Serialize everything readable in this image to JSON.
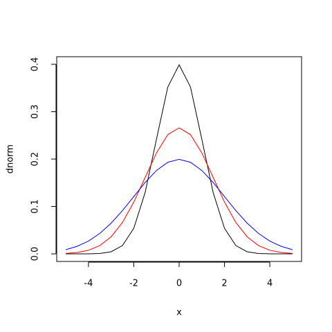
{
  "chart_data": {
    "type": "line",
    "xlabel": "x",
    "ylabel": "dnorm",
    "x": [
      -5,
      -4.5,
      -4,
      -3.5,
      -3,
      -2.5,
      -2,
      -1.5,
      -1,
      -0.5,
      0,
      0.5,
      1,
      1.5,
      2,
      2.5,
      3,
      3.5,
      4,
      4.5,
      5
    ],
    "series": [
      {
        "color": "#000000",
        "values": [
          1.5e-06,
          1.6e-05,
          0.000134,
          0.000873,
          0.00443,
          0.0175,
          0.054,
          0.1295,
          0.242,
          0.3521,
          0.3989,
          0.3521,
          0.242,
          0.1295,
          0.054,
          0.0175,
          0.00443,
          0.000873,
          0.000134,
          1.6e-05,
          1.5e-06
        ]
      },
      {
        "color": "#ff0000",
        "values": [
          0.001,
          0.003,
          0.0076,
          0.0175,
          0.036,
          0.0663,
          0.1093,
          0.1613,
          0.213,
          0.2516,
          0.266,
          0.2516,
          0.213,
          0.1613,
          0.1093,
          0.0663,
          0.036,
          0.0175,
          0.0076,
          0.003,
          0.001
        ]
      },
      {
        "color": "#0000ff",
        "values": [
          0.0088,
          0.0159,
          0.027,
          0.0431,
          0.0648,
          0.0913,
          0.121,
          0.1506,
          0.176,
          0.1933,
          0.1995,
          0.1933,
          0.176,
          0.1506,
          0.121,
          0.0913,
          0.0648,
          0.0431,
          0.027,
          0.0159,
          0.0088
        ]
      }
    ],
    "xlim": [
      -5.4,
      5.4
    ],
    "xticks": [
      -4,
      -2,
      0,
      2,
      4
    ],
    "ylim": [
      -0.016,
      0.416
    ],
    "yticks": [
      {
        "value": 0,
        "label": "0.0"
      },
      0.1,
      0.2,
      0.3,
      0.4
    ]
  }
}
